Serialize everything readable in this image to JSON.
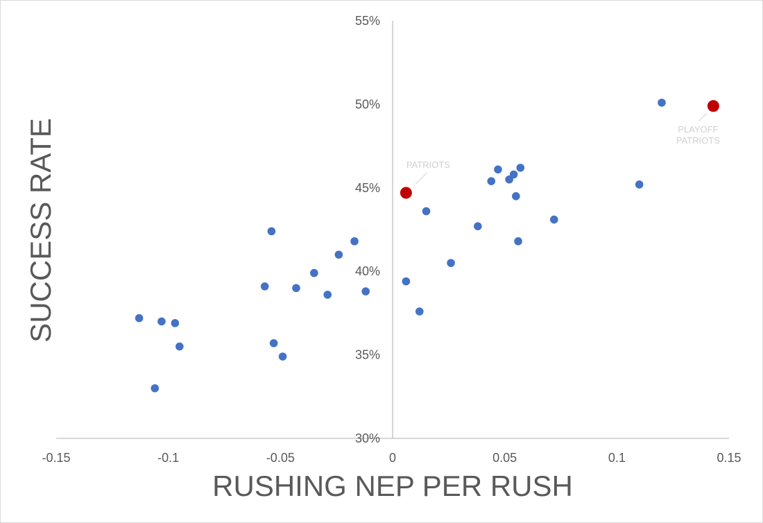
{
  "chart_data": {
    "type": "scatter",
    "xlabel": "RUSHING NEP PER RUSH",
    "ylabel": "SUCCESS RATE",
    "xlim": [
      -0.15,
      0.15
    ],
    "ylim": [
      0.3,
      0.55
    ],
    "x_ticks": [
      -0.15,
      -0.1,
      -0.05,
      0,
      0.05,
      0.1,
      0.15
    ],
    "x_tick_labels": [
      "-0.15",
      "-0.1",
      "-0.05",
      "0",
      "0.05",
      "0.1",
      "0.15"
    ],
    "y_ticks": [
      0.3,
      0.35,
      0.4,
      0.45,
      0.5,
      0.55
    ],
    "y_tick_labels": [
      "30%",
      "35%",
      "40%",
      "45%",
      "50%",
      "55%"
    ],
    "grid": false,
    "legend": "none",
    "colors": {
      "teams": "#4472c4",
      "highlight": "#c00000",
      "axis": "#bfbfbf",
      "text": "#595959"
    },
    "series": [
      {
        "x": [
          -0.113,
          -0.103,
          -0.097,
          -0.095,
          -0.106,
          -0.057,
          -0.054,
          -0.053,
          -0.049,
          -0.043,
          -0.035,
          -0.029,
          -0.024,
          -0.017,
          -0.012,
          0.006,
          0.012,
          0.015,
          0.026,
          0.038,
          0.044,
          0.047,
          0.052,
          0.054,
          0.055,
          0.056,
          0.057,
          0.072,
          0.11,
          0.12
        ],
        "y": [
          0.372,
          0.37,
          0.369,
          0.355,
          0.33,
          0.391,
          0.424,
          0.357,
          0.349,
          0.39,
          0.399,
          0.386,
          0.41,
          0.418,
          0.388,
          0.394,
          0.376,
          0.436,
          0.405,
          0.427,
          0.454,
          0.461,
          0.455,
          0.458,
          0.445,
          0.418,
          0.462,
          0.431,
          0.452,
          0.501
        ]
      },
      {
        "x": [
          0.006,
          0.143
        ],
        "y": [
          0.447,
          0.499
        ],
        "labels": [
          [
            "PATRIOTS"
          ],
          [
            "PLAYOFF",
            "PATRIOTS"
          ]
        ]
      }
    ]
  }
}
